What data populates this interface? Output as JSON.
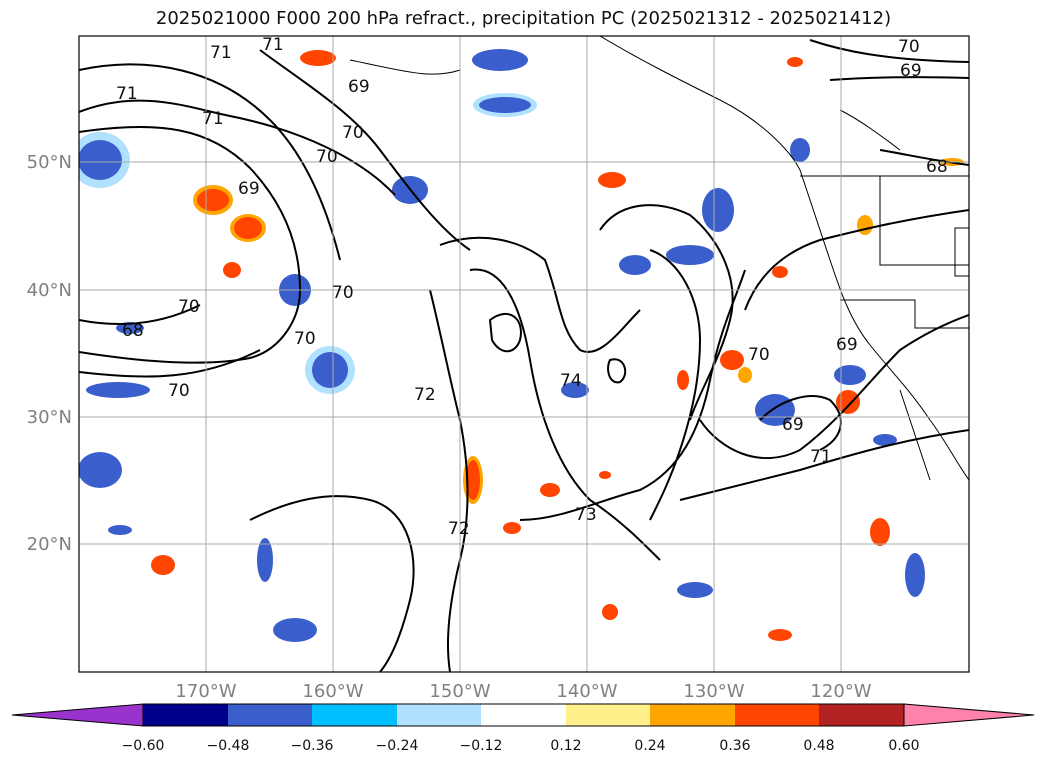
{
  "title": "2025021000 F000 200 hPa refract., precipitation PC (2025021312 - 2025021412)",
  "map": {
    "lon_labels": [
      "170°W",
      "160°W",
      "150°W",
      "140°W",
      "130°W",
      "120°W"
    ],
    "lat_labels": [
      "50°N",
      "40°N",
      "30°N",
      "20°N"
    ],
    "contour_labels": [
      "71",
      "71",
      "71",
      "71",
      "69",
      "70",
      "70",
      "69",
      "70",
      "70",
      "70",
      "68",
      "70",
      "72",
      "74",
      "72",
      "73",
      "70",
      "69",
      "69",
      "71",
      "70",
      "69",
      "68"
    ],
    "gridline_color": "#aaaaaa",
    "coastline_color": "#000000"
  },
  "colorbar": {
    "ticks": [
      "−0.60",
      "−0.48",
      "−0.36",
      "−0.24",
      "−0.12",
      "0.12",
      "0.24",
      "0.36",
      "0.48",
      "0.60"
    ],
    "colors": [
      "#9a32cd",
      "#00008b",
      "#3a5fcd",
      "#00bfff",
      "#b0e2ff",
      "#ffffff",
      "#fff08c",
      "#ffa500",
      "#ff4500",
      "#b22222",
      "#ff82ab"
    ]
  }
}
